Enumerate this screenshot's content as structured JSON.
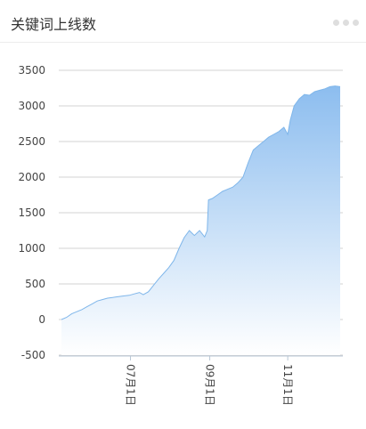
{
  "header": {
    "title": "关键词上线数"
  },
  "menu": {
    "icon": "more-dots-icon"
  },
  "colors": {
    "line": "#7fb6ea",
    "fill_top": "#8cbdef",
    "fill_bottom": "#ffffff",
    "grid": "#d3d3d3",
    "axis": "#b9c7d6"
  },
  "chart_data": {
    "type": "area",
    "title": "关键词上线数",
    "xlabel": "",
    "ylabel": "",
    "ylim": [
      -500,
      3500
    ],
    "yticks": [
      -500,
      0,
      500,
      1000,
      1500,
      2000,
      2500,
      3000,
      3500
    ],
    "xlim": [
      "2020-05-08",
      "2020-12-12"
    ],
    "xticks": [
      {
        "date": "2020-07-01",
        "label": "07月1日"
      },
      {
        "date": "2020-09-01",
        "label": "09月1日"
      },
      {
        "date": "2020-11-01",
        "label": "11月1日"
      }
    ],
    "grid": true,
    "legend": "none",
    "series": [
      {
        "points": [
          [
            "2020-05-08",
            0
          ],
          [
            "2020-05-12",
            30
          ],
          [
            "2020-05-16",
            80
          ],
          [
            "2020-05-20",
            110
          ],
          [
            "2020-05-24",
            140
          ],
          [
            "2020-05-28",
            180
          ],
          [
            "2020-06-01",
            220
          ],
          [
            "2020-06-05",
            260
          ],
          [
            "2020-06-09",
            280
          ],
          [
            "2020-06-13",
            300
          ],
          [
            "2020-06-17",
            310
          ],
          [
            "2020-06-21",
            320
          ],
          [
            "2020-06-25",
            330
          ],
          [
            "2020-06-30",
            340
          ],
          [
            "2020-07-04",
            360
          ],
          [
            "2020-07-08",
            380
          ],
          [
            "2020-07-11",
            350
          ],
          [
            "2020-07-15",
            390
          ],
          [
            "2020-07-19",
            480
          ],
          [
            "2020-07-23",
            570
          ],
          [
            "2020-07-27",
            650
          ],
          [
            "2020-07-31",
            730
          ],
          [
            "2020-08-04",
            830
          ],
          [
            "2020-08-08",
            1000
          ],
          [
            "2020-08-12",
            1150
          ],
          [
            "2020-08-16",
            1250
          ],
          [
            "2020-08-20",
            1180
          ],
          [
            "2020-08-24",
            1250
          ],
          [
            "2020-08-28",
            1160
          ],
          [
            "2020-08-30",
            1250
          ],
          [
            "2020-08-31",
            1680
          ],
          [
            "2020-09-03",
            1700
          ],
          [
            "2020-09-07",
            1750
          ],
          [
            "2020-09-11",
            1800
          ],
          [
            "2020-09-15",
            1830
          ],
          [
            "2020-09-19",
            1860
          ],
          [
            "2020-09-23",
            1920
          ],
          [
            "2020-09-27",
            2000
          ],
          [
            "2020-10-01",
            2200
          ],
          [
            "2020-10-05",
            2380
          ],
          [
            "2020-10-09",
            2440
          ],
          [
            "2020-10-13",
            2500
          ],
          [
            "2020-10-17",
            2560
          ],
          [
            "2020-10-21",
            2600
          ],
          [
            "2020-10-25",
            2640
          ],
          [
            "2020-10-29",
            2700
          ],
          [
            "2020-11-01",
            2600
          ],
          [
            "2020-11-03",
            2800
          ],
          [
            "2020-11-06",
            3000
          ],
          [
            "2020-11-10",
            3100
          ],
          [
            "2020-11-14",
            3160
          ],
          [
            "2020-11-18",
            3150
          ],
          [
            "2020-11-22",
            3200
          ],
          [
            "2020-11-26",
            3220
          ],
          [
            "2020-11-30",
            3240
          ],
          [
            "2020-12-04",
            3270
          ],
          [
            "2020-12-08",
            3280
          ],
          [
            "2020-12-12",
            3270
          ]
        ]
      }
    ]
  }
}
